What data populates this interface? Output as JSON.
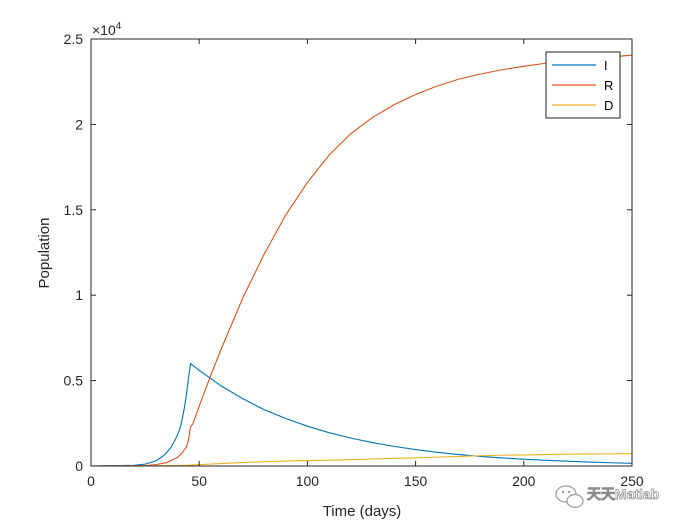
{
  "chart_data": {
    "type": "line",
    "xlabel": "Time (days)",
    "ylabel": "Population",
    "y_exponent_label": "×10",
    "y_exponent_power": "4",
    "xlim": [
      0,
      250
    ],
    "ylim": [
      0,
      25000
    ],
    "x_ticks": [
      0,
      50,
      100,
      150,
      200,
      250
    ],
    "y_ticks": [
      0,
      5000,
      10000,
      15000,
      20000,
      25000
    ],
    "x_tick_labels": [
      "0",
      "50",
      "100",
      "150",
      "200",
      "250"
    ],
    "y_tick_labels": [
      "0",
      "0.5",
      "1",
      "1.5",
      "2",
      "2.5"
    ],
    "grid": false,
    "legend_position": "top-right",
    "series": [
      {
        "name": "I",
        "color": "#0072BD",
        "x": [
          0,
          20,
          25,
          30,
          34,
          37,
          39,
          41,
          42,
          43,
          44,
          45,
          46,
          50,
          60,
          70,
          80,
          90,
          100,
          110,
          120,
          130,
          140,
          150,
          160,
          170,
          180,
          190,
          200,
          210,
          220,
          230,
          240,
          250
        ],
        "y": [
          0,
          40,
          110,
          300,
          650,
          1100,
          1550,
          2150,
          2650,
          3300,
          4100,
          5100,
          6000,
          5600,
          4700,
          3950,
          3300,
          2780,
          2330,
          1950,
          1640,
          1370,
          1150,
          960,
          800,
          670,
          560,
          470,
          400,
          330,
          280,
          230,
          190,
          160
        ]
      },
      {
        "name": "R",
        "color": "#D95319",
        "x": [
          0,
          20,
          25,
          30,
          35,
          40,
          42,
          44,
          45,
          46,
          47,
          50,
          55,
          60,
          70,
          80,
          90,
          100,
          110,
          120,
          130,
          140,
          150,
          160,
          170,
          180,
          190,
          200,
          210,
          220,
          230,
          240,
          250
        ],
        "y": [
          0,
          10,
          30,
          80,
          200,
          500,
          750,
          1100,
          1500,
          2300,
          2450,
          3500,
          5200,
          6800,
          9800,
          12400,
          14700,
          16600,
          18200,
          19450,
          20400,
          21150,
          21750,
          22250,
          22650,
          22950,
          23200,
          23400,
          23580,
          23730,
          23850,
          23950,
          24050
        ]
      },
      {
        "name": "D",
        "color": "#EDB120",
        "x": [
          0,
          30,
          40,
          45,
          50,
          60,
          70,
          80,
          90,
          100,
          110,
          120,
          130,
          140,
          150,
          160,
          170,
          180,
          190,
          200,
          210,
          220,
          230,
          240,
          250
        ],
        "y": [
          0,
          10,
          30,
          50,
          80,
          140,
          200,
          250,
          290,
          320,
          340,
          370,
          410,
          450,
          480,
          520,
          560,
          600,
          630,
          650,
          670,
          690,
          700,
          710,
          720
        ]
      }
    ]
  },
  "watermark": {
    "text": "天天Matlab",
    "icon": "wechat-icon"
  }
}
